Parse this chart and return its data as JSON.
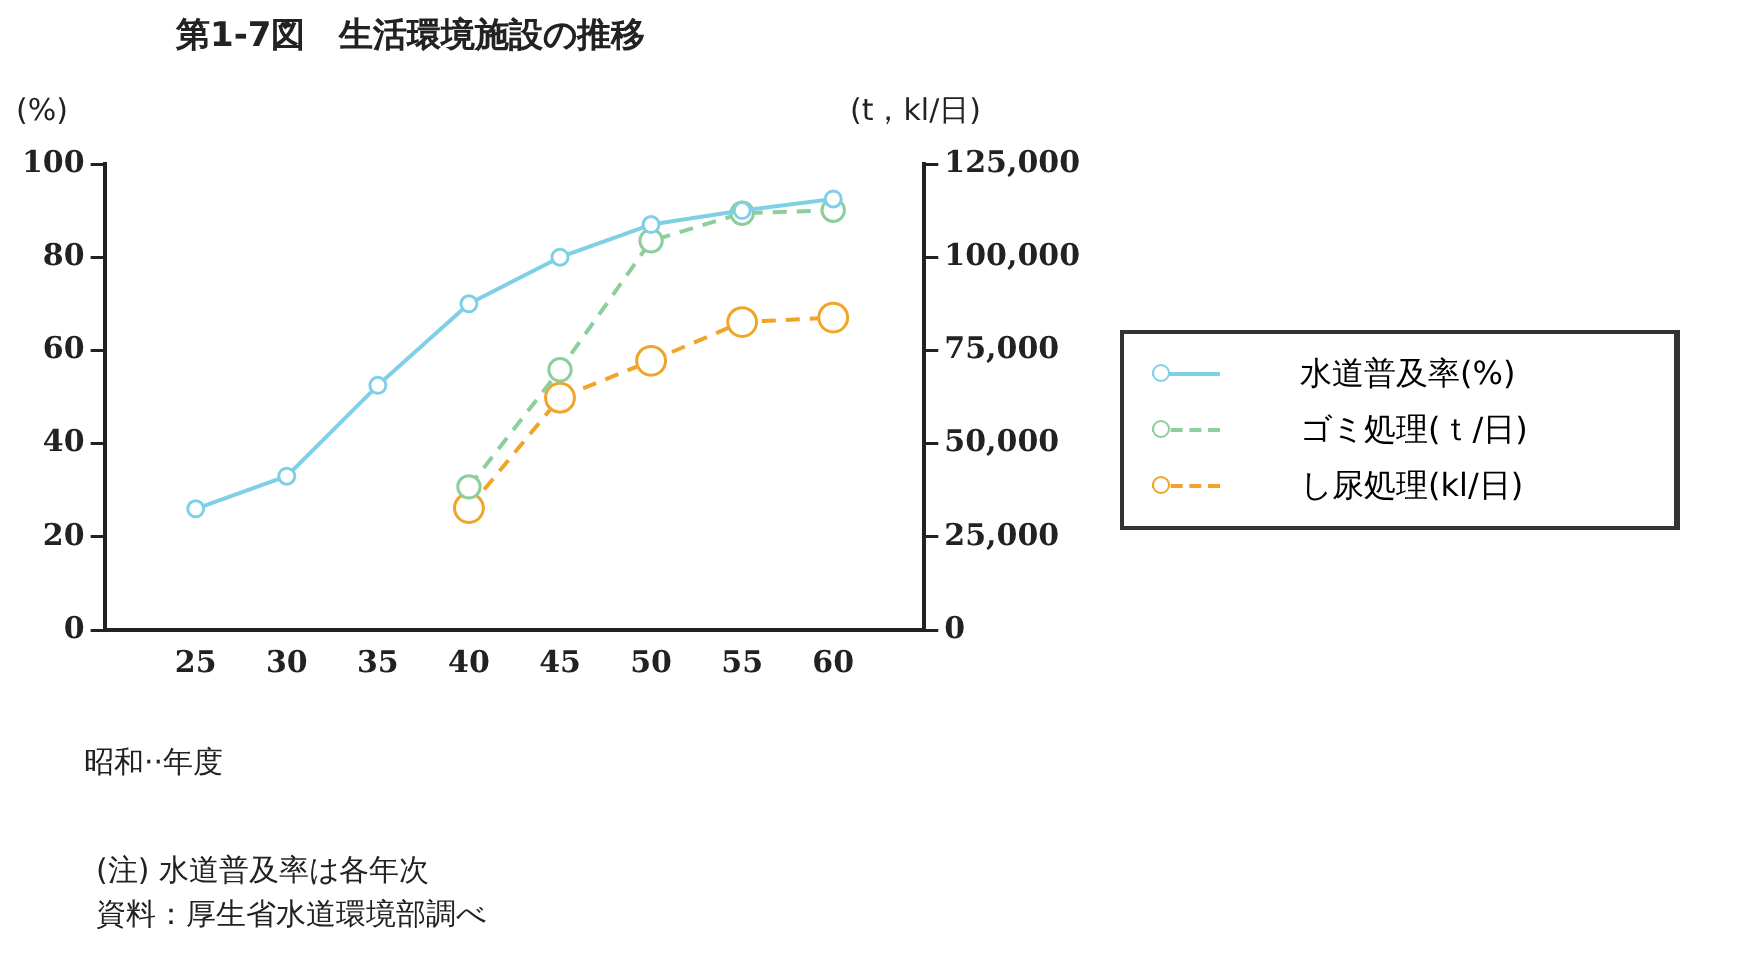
{
  "chart_data": {
    "type": "line",
    "title": "第1-7図　生活環境施設の推移",
    "xlabel": "昭和··年度",
    "ylabel": "(%)",
    "y2label": "(t，kl/日)",
    "x": [
      25,
      30,
      35,
      40,
      45,
      50,
      55,
      60
    ],
    "xlim": [
      20,
      65
    ],
    "xticks": [
      25,
      30,
      35,
      40,
      45,
      50,
      55,
      60
    ],
    "ylim": [
      0,
      100
    ],
    "yticks": [
      0,
      20,
      40,
      60,
      80,
      100
    ],
    "y2lim": [
      0,
      125000
    ],
    "y2ticks": [
      {
        "value": 0,
        "label": "0"
      },
      {
        "value": 25000,
        "label": "25,000"
      },
      {
        "value": 50000,
        "label": "50,000"
      },
      {
        "value": 75000,
        "label": "75,000"
      },
      {
        "value": 100000,
        "label": "100,000"
      },
      {
        "value": 125000,
        "label": "125,000"
      }
    ],
    "series": [
      {
        "name": "水道普及率(%)",
        "color": "#7fd0e6",
        "line_style": "solid",
        "values": [
          26,
          33,
          52.5,
          70,
          80,
          87,
          90,
          92.5
        ]
      },
      {
        "name": "ゴミ処理(ｔ/日)",
        "color": "#8ccf9c",
        "line_style": "dashed",
        "axis": "y2",
        "values": [
          null,
          null,
          null,
          38400,
          69800,
          104400,
          111800,
          112600
        ]
      },
      {
        "name": "し尿処理(kl/日)",
        "color": "#f0a428",
        "line_style": "dashed",
        "axis": "y2",
        "values": [
          null,
          null,
          null,
          32700,
          62300,
          72200,
          82600,
          83800
        ]
      }
    ],
    "marker": "circle",
    "grid": false,
    "legend": "right",
    "annotations": [
      "(注) 水道普及率は各年次",
      "資料：厚生省水道環境部調べ"
    ]
  }
}
